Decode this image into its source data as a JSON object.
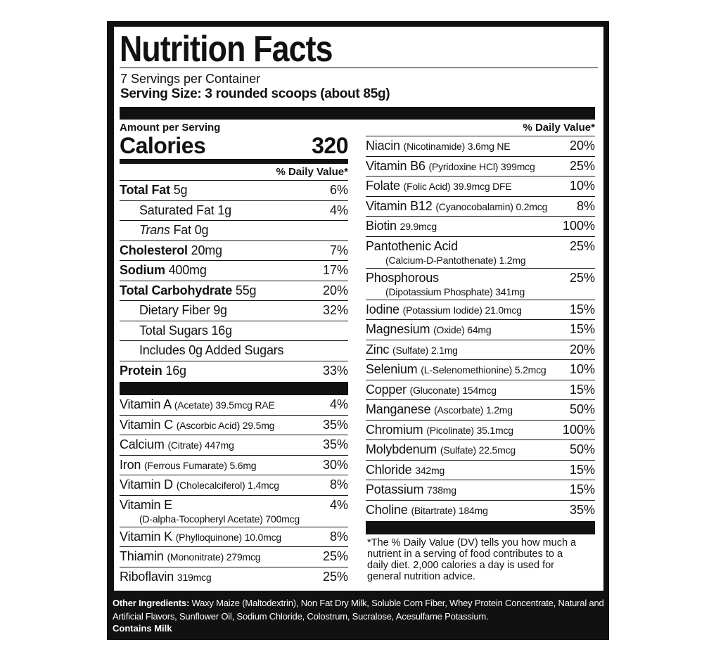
{
  "title": "Nutrition Facts",
  "servings": "7 Servings per Container",
  "serving_size": "Serving Size: 3 rounded scoops (about 85g)",
  "amount_per_serving": "Amount per Serving",
  "calories": {
    "label": "Calories",
    "value": "320"
  },
  "left_dv_header": "% Daily Value*",
  "nutrients": [
    {
      "name": "Total Fat",
      "amount": "5g",
      "dv": "6%",
      "sub": [
        {
          "name": "Saturated Fat",
          "amount": "1g",
          "dv": "4%"
        },
        {
          "italic": "Trans",
          "amount": "Fat 0g"
        }
      ]
    },
    {
      "name": "Cholesterol",
      "amount": "20mg",
      "dv": "7%"
    },
    {
      "name": "Sodium",
      "amount": "400mg",
      "dv": "17%"
    },
    {
      "name": "Total Carbohydrate",
      "amount": "55g",
      "dv": "20%",
      "sub": [
        {
          "name": "Dietary Fiber",
          "amount": "9g",
          "dv": "32%"
        },
        {
          "name": "Total Sugars",
          "amount": "16g"
        },
        {
          "name": "Includes 0g Added Sugars"
        }
      ]
    },
    {
      "name": "Protein",
      "amount": "16g",
      "dv": "33%"
    }
  ],
  "left_vitamins": [
    {
      "name": "Vitamin A",
      "detail": "(Acetate) 39.5mcg RAE",
      "dv": "4%"
    },
    {
      "name": "Vitamin C",
      "detail": "(Ascorbic Acid) 29.5mg",
      "dv": "35%"
    },
    {
      "name": "Calcium",
      "detail": "(Citrate) 447mg",
      "dv": "35%"
    },
    {
      "name": "Iron",
      "detail": "(Ferrous Fumarate) 5.6mg",
      "dv": "30%"
    },
    {
      "name": "Vitamin D",
      "detail": "(Cholecalciferol) 1.4mcg",
      "dv": "8%"
    },
    {
      "name": "Vitamin E",
      "line2": "(D-alpha-Tocopheryl Acetate) 700mcg",
      "dv": "4%"
    },
    {
      "name": "Vitamin K",
      "detail": "(Phylloquinone) 10.0mcg",
      "dv": "8%"
    },
    {
      "name": "Thiamin",
      "detail": "(Mononitrate) 279mcg",
      "dv": "25%"
    },
    {
      "name": "Riboflavin",
      "detail": "319mcg",
      "dv": "25%"
    }
  ],
  "right_dv_header": "% Daily Value*",
  "right_vitamins": [
    {
      "name": "Niacin",
      "detail": "(Nicotinamide) 3.6mg NE",
      "dv": "20%"
    },
    {
      "name": "Vitamin B6",
      "detail": "(Pyridoxine HCl) 399mcg",
      "dv": "25%"
    },
    {
      "name": "Folate",
      "detail": "(Folic Acid) 39.9mcg DFE",
      "dv": "10%"
    },
    {
      "name": "Vitamin B12",
      "detail": "(Cyanocobalamin) 0.2mcg",
      "dv": "8%"
    },
    {
      "name": "Biotin",
      "detail": "29.9mcg",
      "dv": "100%"
    },
    {
      "name": "Pantothenic Acid",
      "line2": "(Calcium-D-Pantothenate) 1.2mg",
      "dv": "25%"
    },
    {
      "name": "Phosphorous",
      "line2": "(Dipotassium Phosphate) 341mg",
      "dv": "25%"
    },
    {
      "name": "Iodine",
      "detail": "(Potassium Iodide) 21.0mcg",
      "dv": "15%"
    },
    {
      "name": "Magnesium",
      "detail": "(Oxide) 64mg",
      "dv": "15%"
    },
    {
      "name": "Zinc",
      "detail": "(Sulfate) 2.1mg",
      "dv": "20%"
    },
    {
      "name": "Selenium",
      "detail": "(L-Selenomethionine) 5.2mcg",
      "dv": "10%"
    },
    {
      "name": "Copper",
      "detail": "(Gluconate) 154mcg",
      "dv": "15%"
    },
    {
      "name": "Manganese",
      "detail": "(Ascorbate) 1.2mg",
      "dv": "50%"
    },
    {
      "name": "Chromium",
      "detail": "(Picolinate) 35.1mcg",
      "dv": "100%"
    },
    {
      "name": "Molybdenum",
      "detail": "(Sulfate) 22.5mcg",
      "dv": "50%"
    },
    {
      "name": "Chloride",
      "detail": "342mg",
      "dv": "15%"
    },
    {
      "name": "Potassium",
      "detail": "738mg",
      "dv": "15%"
    },
    {
      "name": "Choline",
      "detail": "(Bitartrate) 184mg",
      "dv": "35%"
    }
  ],
  "footnote": "*The % Daily Value (DV) tells you how much a nutrient in a serving of food contributes to a daily diet. 2,000 calories a day is used for general nutrition advice.",
  "ingredients": {
    "label": "Other Ingredients:",
    "text": "Waxy Maize (Maltodextrin), Non Fat Dry Milk, Soluble Corn Fiber, Whey Protein Concentrate, Natural and Artificial Flavors, Sunflower Oil, Sodium Chloride, Colostrum, Sucralose, Acesulfame Potassium."
  },
  "allergen": "Contains Milk"
}
